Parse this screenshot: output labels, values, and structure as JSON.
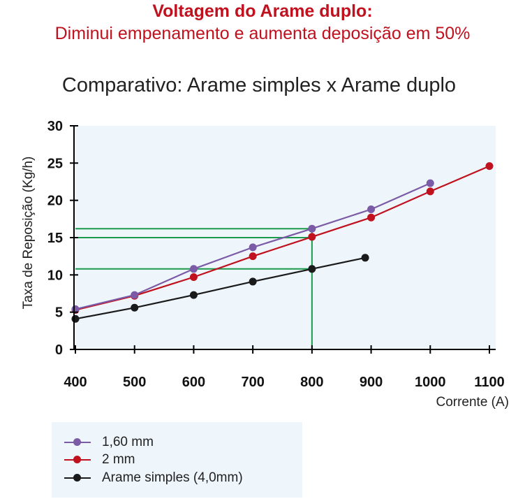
{
  "header": {
    "title": "Voltagem do Arame duplo:",
    "subtitle": "Diminui empenamento e aumenta deposição em 50%",
    "chart_title": "Comparativo: Arame simples x Arame duplo"
  },
  "colors": {
    "plot_bg": "#eef5fb",
    "title": "#c0111f",
    "guide": "#1a9a4a",
    "series_160": "#7b5aa6",
    "series_2": "#c0111f",
    "series_simples": "#1a1a1a"
  },
  "chart_data": {
    "type": "line",
    "title": "Comparativo: Arame simples x Arame duplo",
    "xlabel": "Corrente (A)",
    "ylabel": "Taxa de Reposição (Kg/h)",
    "xlim": [
      400,
      1100
    ],
    "ylim": [
      0,
      30
    ],
    "x_ticks": [
      "400",
      "500",
      "600",
      "700",
      "800",
      "900",
      "1000",
      "1100"
    ],
    "y_ticks": [
      "0",
      "5",
      "10",
      "15",
      "20",
      "25",
      "30"
    ],
    "grid": false,
    "legend_position": "bottom-left",
    "series": [
      {
        "name": "1,60 mm",
        "color": "#7b5aa6",
        "x": [
          400,
          500,
          600,
          700,
          800,
          900,
          1000
        ],
        "y": [
          5.4,
          7.3,
          10.8,
          13.7,
          16.2,
          18.8,
          22.3
        ]
      },
      {
        "name": "2 mm",
        "color": "#c0111f",
        "x": [
          400,
          500,
          600,
          700,
          800,
          900,
          1000,
          1100
        ],
        "y": [
          5.3,
          7.2,
          9.7,
          12.5,
          15.1,
          17.7,
          21.2,
          24.6
        ]
      },
      {
        "name": "Arame simples (4,0mm)",
        "color": "#1a1a1a",
        "x": [
          400,
          500,
          600,
          700,
          800,
          890
        ],
        "y": [
          4.1,
          5.6,
          7.3,
          9.1,
          10.8,
          12.3
        ]
      }
    ],
    "reference_lines": {
      "vertical_x": 800,
      "horizontal_y": [
        16.2,
        15.0,
        10.8
      ]
    }
  }
}
